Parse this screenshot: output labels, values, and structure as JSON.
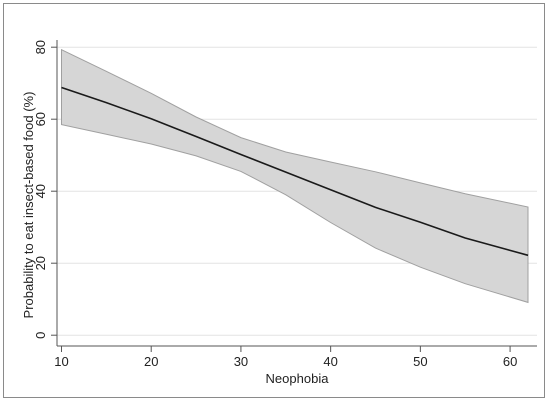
{
  "chart_data": {
    "type": "line",
    "xlabel": "Neophobia",
    "ylabel": "Probability to eat insect-based food (%)",
    "xlim": [
      9.5,
      63
    ],
    "ylim": [
      -3,
      82
    ],
    "x_ticks": [
      10,
      20,
      30,
      40,
      50,
      60
    ],
    "y_ticks": [
      0,
      20,
      40,
      60,
      80
    ],
    "grid": "horizontal",
    "legend": "none",
    "colors": {
      "line": "#1a1a1a",
      "band_fill": "#d6d6d6",
      "band_edge": "#a0a0a0",
      "grid": "#e3e3e3"
    },
    "series": [
      {
        "x": [
          10,
          15,
          20,
          25,
          30,
          35,
          40,
          45,
          50,
          55,
          62
        ],
        "values": [
          68.8,
          64.6,
          60.1,
          55.2,
          50.2,
          45.3,
          40.4,
          35.5,
          31.4,
          27.0,
          22.2
        ],
        "lower": [
          58.5,
          55.8,
          53.1,
          49.8,
          45.5,
          39.0,
          31.3,
          24.2,
          18.9,
          14.3,
          9.1
        ],
        "upper": [
          79.3,
          73.3,
          67.2,
          60.6,
          54.9,
          50.9,
          48.1,
          45.4,
          42.3,
          39.3,
          35.6
        ]
      }
    ]
  }
}
